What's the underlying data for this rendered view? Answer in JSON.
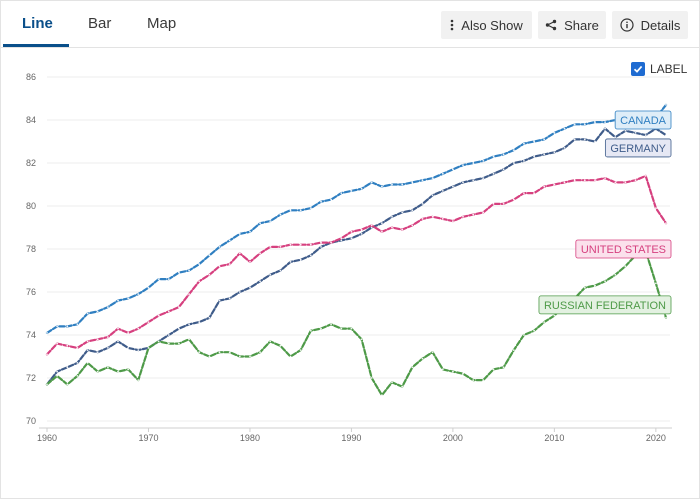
{
  "tabs": [
    {
      "label": "Line"
    },
    {
      "label": "Bar"
    },
    {
      "label": "Map"
    }
  ],
  "toolbar": {
    "also_show_label": "Also Show",
    "share_label": "Share",
    "details_label": "Details"
  },
  "label_toggle": {
    "label": "LABEL",
    "checked": true
  },
  "chart_data": {
    "type": "line",
    "title": "",
    "xlabel": "",
    "ylabel": "",
    "xlim": [
      1960,
      2021
    ],
    "ylim": [
      70,
      86
    ],
    "x_ticks": [
      1960,
      1970,
      1980,
      1990,
      2000,
      2010,
      2020
    ],
    "y_ticks": [
      70,
      72,
      74,
      76,
      78,
      80,
      82,
      84,
      86
    ],
    "grid": true,
    "series": [
      {
        "name": "CANADA",
        "color": "#2f7fc1",
        "label_bg": "#deedf8",
        "points": [
          [
            1960,
            74.1
          ],
          [
            1961,
            74.4
          ],
          [
            1962,
            74.4
          ],
          [
            1963,
            74.5
          ],
          [
            1964,
            75.0
          ],
          [
            1965,
            75.1
          ],
          [
            1966,
            75.3
          ],
          [
            1967,
            75.6
          ],
          [
            1968,
            75.7
          ],
          [
            1969,
            75.9
          ],
          [
            1970,
            76.2
          ],
          [
            1971,
            76.6
          ],
          [
            1972,
            76.6
          ],
          [
            1973,
            76.9
          ],
          [
            1974,
            77.0
          ],
          [
            1975,
            77.3
          ],
          [
            1976,
            77.7
          ],
          [
            1977,
            78.1
          ],
          [
            1978,
            78.4
          ],
          [
            1979,
            78.7
          ],
          [
            1980,
            78.8
          ],
          [
            1981,
            79.2
          ],
          [
            1982,
            79.3
          ],
          [
            1983,
            79.6
          ],
          [
            1984,
            79.8
          ],
          [
            1985,
            79.8
          ],
          [
            1986,
            79.9
          ],
          [
            1987,
            80.2
          ],
          [
            1988,
            80.3
          ],
          [
            1989,
            80.6
          ],
          [
            1990,
            80.7
          ],
          [
            1991,
            80.8
          ],
          [
            1992,
            81.1
          ],
          [
            1993,
            80.9
          ],
          [
            1994,
            81.0
          ],
          [
            1995,
            81.0
          ],
          [
            1996,
            81.1
          ],
          [
            1997,
            81.2
          ],
          [
            1998,
            81.3
          ],
          [
            1999,
            81.5
          ],
          [
            2000,
            81.7
          ],
          [
            2001,
            81.9
          ],
          [
            2002,
            82.0
          ],
          [
            2003,
            82.1
          ],
          [
            2004,
            82.3
          ],
          [
            2005,
            82.4
          ],
          [
            2006,
            82.6
          ],
          [
            2007,
            82.9
          ],
          [
            2008,
            83.0
          ],
          [
            2009,
            83.1
          ],
          [
            2010,
            83.4
          ],
          [
            2011,
            83.6
          ],
          [
            2012,
            83.8
          ],
          [
            2013,
            83.8
          ],
          [
            2014,
            83.9
          ],
          [
            2015,
            83.9
          ],
          [
            2016,
            84.0
          ],
          [
            2017,
            84.0
          ],
          [
            2018,
            84.0
          ],
          [
            2019,
            84.1
          ],
          [
            2020,
            84.1
          ],
          [
            2021,
            84.7
          ]
        ]
      },
      {
        "name": "GERMANY",
        "color": "#3f5c8a",
        "label_bg": "#e6e8f4",
        "points": [
          [
            1960,
            71.7
          ],
          [
            1961,
            72.3
          ],
          [
            1962,
            72.5
          ],
          [
            1963,
            72.7
          ],
          [
            1964,
            73.3
          ],
          [
            1965,
            73.2
          ],
          [
            1966,
            73.4
          ],
          [
            1967,
            73.7
          ],
          [
            1968,
            73.4
          ],
          [
            1969,
            73.3
          ],
          [
            1970,
            73.4
          ],
          [
            1971,
            73.7
          ],
          [
            1972,
            74.0
          ],
          [
            1973,
            74.3
          ],
          [
            1974,
            74.5
          ],
          [
            1975,
            74.6
          ],
          [
            1976,
            74.8
          ],
          [
            1977,
            75.6
          ],
          [
            1978,
            75.7
          ],
          [
            1979,
            76.0
          ],
          [
            1980,
            76.2
          ],
          [
            1981,
            76.5
          ],
          [
            1982,
            76.8
          ],
          [
            1983,
            77.0
          ],
          [
            1984,
            77.4
          ],
          [
            1985,
            77.5
          ],
          [
            1986,
            77.7
          ],
          [
            1987,
            78.1
          ],
          [
            1988,
            78.3
          ],
          [
            1989,
            78.4
          ],
          [
            1990,
            78.5
          ],
          [
            1991,
            78.7
          ],
          [
            1992,
            79.0
          ],
          [
            1993,
            79.2
          ],
          [
            1994,
            79.5
          ],
          [
            1995,
            79.7
          ],
          [
            1996,
            79.8
          ],
          [
            1997,
            80.1
          ],
          [
            1998,
            80.5
          ],
          [
            1999,
            80.7
          ],
          [
            2000,
            80.9
          ],
          [
            2001,
            81.1
          ],
          [
            2002,
            81.2
          ],
          [
            2003,
            81.3
          ],
          [
            2004,
            81.5
          ],
          [
            2005,
            81.7
          ],
          [
            2006,
            82.0
          ],
          [
            2007,
            82.1
          ],
          [
            2008,
            82.3
          ],
          [
            2009,
            82.4
          ],
          [
            2010,
            82.5
          ],
          [
            2011,
            82.7
          ],
          [
            2012,
            83.1
          ],
          [
            2013,
            83.1
          ],
          [
            2014,
            83.0
          ],
          [
            2015,
            83.6
          ],
          [
            2016,
            83.2
          ],
          [
            2017,
            83.5
          ],
          [
            2018,
            83.4
          ],
          [
            2019,
            83.3
          ],
          [
            2020,
            83.6
          ],
          [
            2021,
            83.3
          ]
        ]
      },
      {
        "name": "UNITED STATES",
        "color": "#d6407f",
        "label_bg": "#fbe1ec",
        "points": [
          [
            1960,
            73.1
          ],
          [
            1961,
            73.6
          ],
          [
            1962,
            73.5
          ],
          [
            1963,
            73.4
          ],
          [
            1964,
            73.7
          ],
          [
            1965,
            73.8
          ],
          [
            1966,
            73.9
          ],
          [
            1967,
            74.3
          ],
          [
            1968,
            74.1
          ],
          [
            1969,
            74.3
          ],
          [
            1970,
            74.6
          ],
          [
            1971,
            74.9
          ],
          [
            1972,
            75.1
          ],
          [
            1973,
            75.3
          ],
          [
            1974,
            75.9
          ],
          [
            1975,
            76.5
          ],
          [
            1976,
            76.8
          ],
          [
            1977,
            77.2
          ],
          [
            1978,
            77.3
          ],
          [
            1979,
            77.8
          ],
          [
            1980,
            77.4
          ],
          [
            1981,
            77.8
          ],
          [
            1982,
            78.1
          ],
          [
            1983,
            78.1
          ],
          [
            1984,
            78.2
          ],
          [
            1985,
            78.2
          ],
          [
            1986,
            78.2
          ],
          [
            1987,
            78.3
          ],
          [
            1988,
            78.3
          ],
          [
            1989,
            78.5
          ],
          [
            1990,
            78.8
          ],
          [
            1991,
            78.9
          ],
          [
            1992,
            79.1
          ],
          [
            1993,
            78.8
          ],
          [
            1994,
            79.0
          ],
          [
            1995,
            78.9
          ],
          [
            1996,
            79.1
          ],
          [
            1997,
            79.4
          ],
          [
            1998,
            79.5
          ],
          [
            1999,
            79.4
          ],
          [
            2000,
            79.3
          ],
          [
            2001,
            79.5
          ],
          [
            2002,
            79.6
          ],
          [
            2003,
            79.7
          ],
          [
            2004,
            80.1
          ],
          [
            2005,
            80.1
          ],
          [
            2006,
            80.3
          ],
          [
            2007,
            80.6
          ],
          [
            2008,
            80.6
          ],
          [
            2009,
            80.9
          ],
          [
            2010,
            81.0
          ],
          [
            2011,
            81.1
          ],
          [
            2012,
            81.2
          ],
          [
            2013,
            81.2
          ],
          [
            2014,
            81.2
          ],
          [
            2015,
            81.3
          ],
          [
            2016,
            81.1
          ],
          [
            2017,
            81.1
          ],
          [
            2018,
            81.2
          ],
          [
            2019,
            81.4
          ],
          [
            2020,
            79.9
          ],
          [
            2021,
            79.2
          ]
        ]
      },
      {
        "name": "RUSSIAN FEDERATION",
        "color": "#4e9a48",
        "label_bg": "#e3f1e1",
        "points": [
          [
            1960,
            71.7
          ],
          [
            1961,
            72.1
          ],
          [
            1962,
            71.7
          ],
          [
            1963,
            72.1
          ],
          [
            1964,
            72.7
          ],
          [
            1965,
            72.3
          ],
          [
            1966,
            72.5
          ],
          [
            1967,
            72.3
          ],
          [
            1968,
            72.4
          ],
          [
            1969,
            71.9
          ],
          [
            1970,
            73.4
          ],
          [
            1971,
            73.7
          ],
          [
            1972,
            73.6
          ],
          [
            1973,
            73.6
          ],
          [
            1974,
            73.8
          ],
          [
            1975,
            73.2
          ],
          [
            1976,
            73.0
          ],
          [
            1977,
            73.2
          ],
          [
            1978,
            73.2
          ],
          [
            1979,
            73.0
          ],
          [
            1980,
            73.0
          ],
          [
            1981,
            73.2
          ],
          [
            1982,
            73.7
          ],
          [
            1983,
            73.5
          ],
          [
            1984,
            73.0
          ],
          [
            1985,
            73.3
          ],
          [
            1986,
            74.2
          ],
          [
            1987,
            74.3
          ],
          [
            1988,
            74.5
          ],
          [
            1989,
            74.3
          ],
          [
            1990,
            74.3
          ],
          [
            1991,
            73.8
          ],
          [
            1992,
            72.0
          ],
          [
            1993,
            71.2
          ],
          [
            1994,
            71.8
          ],
          [
            1995,
            71.6
          ],
          [
            1996,
            72.5
          ],
          [
            1997,
            72.9
          ],
          [
            1998,
            73.2
          ],
          [
            1999,
            72.4
          ],
          [
            2000,
            72.3
          ],
          [
            2001,
            72.2
          ],
          [
            2002,
            71.9
          ],
          [
            2003,
            71.9
          ],
          [
            2004,
            72.4
          ],
          [
            2005,
            72.5
          ],
          [
            2006,
            73.3
          ],
          [
            2007,
            74.0
          ],
          [
            2008,
            74.2
          ],
          [
            2009,
            74.6
          ],
          [
            2010,
            74.9
          ],
          [
            2011,
            75.4
          ],
          [
            2012,
            75.7
          ],
          [
            2013,
            76.2
          ],
          [
            2014,
            76.3
          ],
          [
            2015,
            76.5
          ],
          [
            2016,
            76.8
          ],
          [
            2017,
            77.2
          ],
          [
            2018,
            77.7
          ],
          [
            2019,
            77.9
          ],
          [
            2020,
            76.4
          ],
          [
            2021,
            74.8
          ]
        ]
      }
    ]
  }
}
